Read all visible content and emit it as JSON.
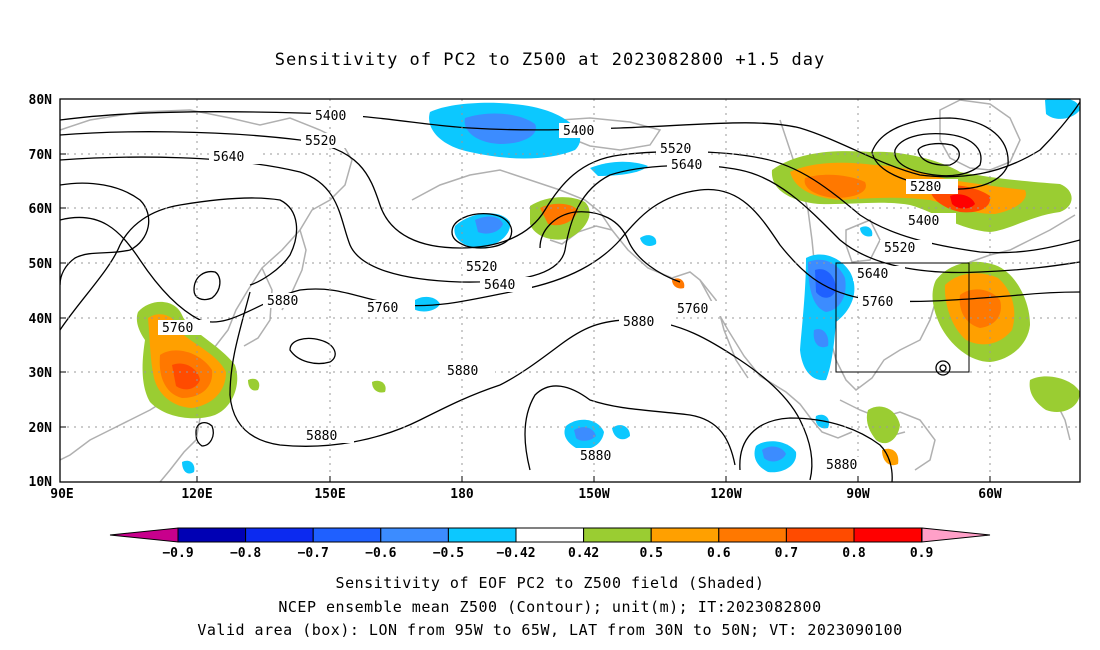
{
  "title": "Sensitivity of PC2 to Z500 at 2023082800 +1.5 day",
  "lat_labels": [
    "80N",
    "70N",
    "60N",
    "50N",
    "40N",
    "30N",
    "20N",
    "10N"
  ],
  "lon_labels": [
    "90E",
    "120E",
    "150E",
    "180",
    "150W",
    "120W",
    "90W",
    "60W"
  ],
  "contour_labels": {
    "c5400a": "5400",
    "c5400b": "5400",
    "c5400c": "5400",
    "c5520a": "5520",
    "c5520b": "5520",
    "c5520c": "5520",
    "c5520d": "5520",
    "c5640a": "5640",
    "c5640b": "5640",
    "c5640c": "5640",
    "c5640d": "5640",
    "c5760a": "5760",
    "c5760b": "5760",
    "c5760c": "5760",
    "c5760d": "5760",
    "c5880a": "5880",
    "c5880b": "5880",
    "c5880c": "5880",
    "c5880d": "5880",
    "c5880e": "5880",
    "c5880f": "5880",
    "c5280": "5280"
  },
  "colorbar": {
    "labels": [
      "−0.9",
      "−0.8",
      "−0.7",
      "−0.6",
      "−0.5",
      "−0.42",
      "0.42",
      "0.5",
      "0.6",
      "0.7",
      "0.8",
      "0.9"
    ],
    "colors": [
      "#0000b4",
      "#0c2af0",
      "#1f60ff",
      "#3c8cff",
      "#0cc8ff",
      "#ffffff",
      "#9acd32",
      "#ffa000",
      "#ff7800",
      "#ff4b00",
      "#ff0000"
    ],
    "low_extend_color": "#c8008c",
    "high_extend_color": "#ffa0c8"
  },
  "captions": {
    "line1": "Sensitivity of EOF PC2 to Z500 field (Shaded)",
    "line2": "NCEP ensemble mean Z500 (Contour); unit(m); IT:2023082800",
    "line3": "Valid area (box): LON from 95W to 65W, LAT from 30N to 50N; VT: 2023090100"
  }
}
